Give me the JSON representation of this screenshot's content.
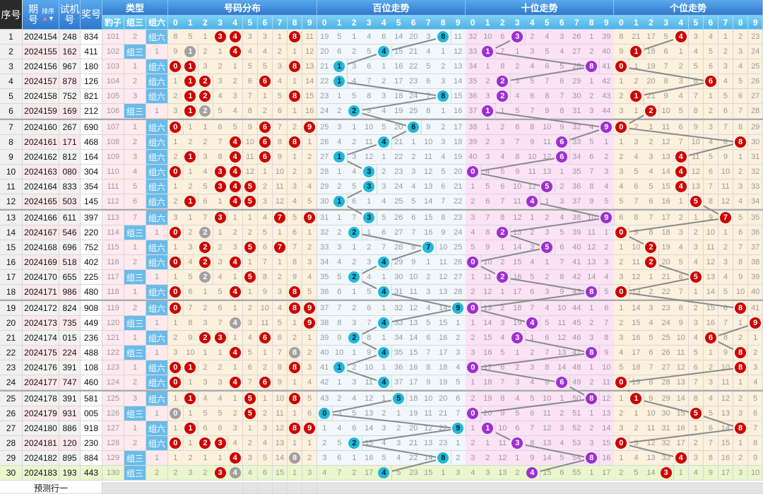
{
  "header": {
    "seq": "序号",
    "issue": "期号",
    "sort": "排序",
    "test": "试机号",
    "draw": "奖号",
    "type": "类型",
    "type_cols": [
      "豹子",
      "组三",
      "组六"
    ],
    "dist": "号码分布",
    "hundreds": "百位走势",
    "tens": "十位走势",
    "units": "个位走势",
    "digits": [
      "0",
      "1",
      "2",
      "3",
      "4",
      "5",
      "6",
      "7",
      "8",
      "9"
    ]
  },
  "labels": {
    "zusan": "组三",
    "zuliu": "组六"
  },
  "first_row_omissions": {
    "type": [
      101,
      2,
      0
    ],
    "dist": [
      8,
      5,
      1,
      0,
      0,
      3,
      3,
      1,
      0,
      11
    ],
    "hundreds": [
      19,
      5,
      1,
      4,
      6,
      14,
      20,
      3,
      0,
      11
    ],
    "tens": [
      32,
      10,
      6,
      0,
      2,
      4,
      3,
      26,
      1,
      39
    ],
    "units": [
      8,
      21,
      17,
      5,
      0,
      3,
      4,
      1,
      2,
      23
    ]
  },
  "rows": [
    {
      "seq": "1",
      "issue": "2024154",
      "test": "248",
      "draw": "834"
    },
    {
      "seq": "2",
      "issue": "2024155",
      "test": "162",
      "draw": "411"
    },
    {
      "seq": "3",
      "issue": "2024156",
      "test": "967",
      "draw": "180"
    },
    {
      "seq": "4",
      "issue": "2024157",
      "test": "878",
      "draw": "126"
    },
    {
      "seq": "5",
      "issue": "2024158",
      "test": "752",
      "draw": "821"
    },
    {
      "seq": "6",
      "issue": "2024159",
      "test": "169",
      "draw": "212"
    },
    {
      "seq": "7",
      "issue": "2024160",
      "test": "267",
      "draw": "690"
    },
    {
      "seq": "8",
      "issue": "2024161",
      "test": "171",
      "draw": "468"
    },
    {
      "seq": "9",
      "issue": "2024162",
      "test": "812",
      "draw": "164"
    },
    {
      "seq": "10",
      "issue": "2024163",
      "test": "080",
      "draw": "304"
    },
    {
      "seq": "11",
      "issue": "2024164",
      "test": "833",
      "draw": "354"
    },
    {
      "seq": "12",
      "issue": "2024165",
      "test": "503",
      "draw": "145"
    },
    {
      "seq": "13",
      "issue": "2024166",
      "test": "611",
      "draw": "397"
    },
    {
      "seq": "14",
      "issue": "2024167",
      "test": "546",
      "draw": "220"
    },
    {
      "seq": "15",
      "issue": "2024168",
      "test": "696",
      "draw": "752"
    },
    {
      "seq": "16",
      "issue": "2024169",
      "test": "518",
      "draw": "402"
    },
    {
      "seq": "17",
      "issue": "2024170",
      "test": "655",
      "draw": "225"
    },
    {
      "seq": "18",
      "issue": "2024171",
      "test": "986",
      "draw": "480"
    },
    {
      "seq": "19",
      "issue": "2024172",
      "test": "824",
      "draw": "908"
    },
    {
      "seq": "20",
      "issue": "2024173",
      "test": "735",
      "draw": "449"
    },
    {
      "seq": "21",
      "issue": "2024174",
      "test": "015",
      "draw": "236"
    },
    {
      "seq": "22",
      "issue": "2024175",
      "test": "224",
      "draw": "488"
    },
    {
      "seq": "23",
      "issue": "2024176",
      "test": "391",
      "draw": "108"
    },
    {
      "seq": "24",
      "issue": "2024177",
      "test": "747",
      "draw": "460"
    },
    {
      "seq": "25",
      "issue": "2024178",
      "test": "391",
      "draw": "581"
    },
    {
      "seq": "26",
      "issue": "2024179",
      "test": "931",
      "draw": "005"
    },
    {
      "seq": "27",
      "issue": "2024180",
      "test": "886",
      "draw": "918"
    },
    {
      "seq": "28",
      "issue": "2024181",
      "test": "120",
      "draw": "230"
    },
    {
      "seq": "29",
      "issue": "2024182",
      "test": "895",
      "draw": "884"
    },
    {
      "seq": "30",
      "issue": "2024183",
      "test": "193",
      "draw": "443"
    }
  ],
  "footer": {
    "predict": "预测行一"
  },
  "colors": {
    "dist_ball": "#cc0000",
    "repeat_ball": "#a0a0a0",
    "hundreds_ball": "#22b8d8",
    "tens_ball": "#9b30d0",
    "units_ball": "#cc0000",
    "latest_row": "#eaf6cc"
  }
}
